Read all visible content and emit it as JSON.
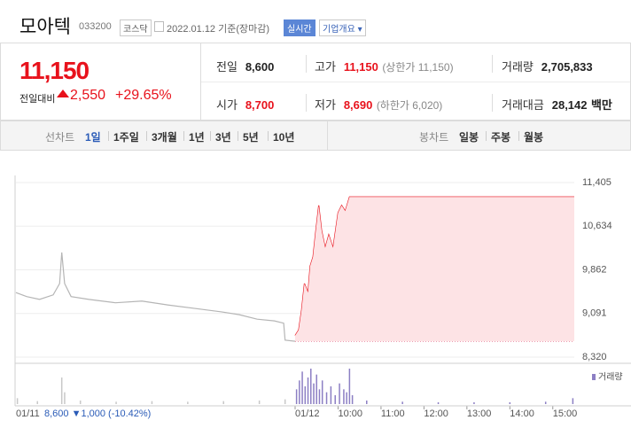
{
  "header": {
    "name": "모아텍",
    "code": "033200",
    "market": "코스닥",
    "date": "2022.01.12 기준(장마감)",
    "realtime": "실시간",
    "overview": "기업개요"
  },
  "quote": {
    "price": "11,150",
    "change_label": "전일대비",
    "change": "2,550",
    "rate": "+29.65%"
  },
  "stats": [
    {
      "label": "전일",
      "value": "8,600"
    },
    {
      "label": "고가",
      "value": "11,150",
      "note": "(상한가 11,150)"
    },
    {
      "label": "거래량",
      "value": "2,705,833"
    },
    {
      "label": "시가",
      "value": "8,700"
    },
    {
      "label": "저가",
      "value": "8,690",
      "note": "(하한가 6,020)"
    },
    {
      "label": "거래대금",
      "value": "28,142",
      "unit": "백만"
    }
  ],
  "tabs": {
    "line_label": "선차트",
    "line_periods": [
      "1일",
      "1주일",
      "3개월",
      "1년",
      "3년",
      "5년",
      "10년"
    ],
    "selected": 0,
    "candle_label": "봉차트",
    "candle_periods": [
      "일봉",
      "주봉",
      "월봉"
    ]
  },
  "chart_data": {
    "type": "line",
    "xlim": [
      -390,
      390
    ],
    "ylim": [
      8320,
      11405
    ],
    "yticks": [
      {
        "value": 11405,
        "label": "11,405"
      },
      {
        "value": 10634,
        "label": "10,634"
      },
      {
        "value": 9862,
        "label": "9,862"
      },
      {
        "value": 9091,
        "label": "9,091"
      },
      {
        "value": 8320,
        "label": "8,320"
      }
    ],
    "xticks": [
      {
        "value": 0,
        "label": "01/12"
      },
      {
        "value": 60,
        "label": "10:00"
      },
      {
        "value": 120,
        "label": "11:00"
      },
      {
        "value": 180,
        "label": "12:00"
      },
      {
        "value": 240,
        "label": "13:00"
      },
      {
        "value": 300,
        "label": "14:00"
      },
      {
        "value": 360,
        "label": "15:00"
      }
    ],
    "grid": true,
    "base": 8600,
    "fill": "#fde3e5",
    "series": [
      {
        "color": "#b5b5b5",
        "x": [
          -390,
          -375,
          -357,
          -338,
          -329,
          -326,
          -322,
          -313,
          -288,
          -251,
          -214,
          -177,
          -140,
          -103,
          -78,
          -53,
          -29,
          -16,
          -14,
          0
        ],
        "values": [
          9460,
          9390,
          9340,
          9420,
          9620,
          10170,
          9620,
          9390,
          9340,
          9280,
          9310,
          9240,
          9180,
          9120,
          9070,
          8990,
          8960,
          8920,
          8620,
          8600
        ]
      },
      {
        "color": "#e8121c",
        "x": [
          0,
          5,
          9,
          13,
          18,
          21,
          25,
          29,
          33,
          37,
          42,
          47,
          53,
          60,
          65,
          70,
          76,
          390
        ],
        "values": [
          8700,
          8800,
          9150,
          9620,
          9460,
          9930,
          10090,
          10560,
          11000,
          10560,
          10250,
          10480,
          10250,
          10870,
          11000,
          10900,
          11150,
          11150
        ]
      }
    ],
    "volume": {
      "name": "거래량",
      "color": "#8c7fc4",
      "ylim": [
        0,
        60
      ],
      "x": [
        -388,
        -360,
        -326,
        -322,
        -300,
        -250,
        -200,
        -150,
        -100,
        -50,
        -14,
        2,
        6,
        10,
        14,
        18,
        22,
        26,
        30,
        34,
        38,
        44,
        50,
        56,
        62,
        68,
        72,
        76,
        80,
        100,
        150,
        200,
        250,
        300,
        350,
        388
      ],
      "values": [
        10,
        5,
        45,
        20,
        6,
        4,
        5,
        4,
        5,
        6,
        8,
        25,
        40,
        55,
        30,
        45,
        60,
        35,
        50,
        25,
        40,
        20,
        30,
        15,
        35,
        25,
        20,
        60,
        15,
        6,
        4,
        3,
        3,
        3,
        4,
        10
      ]
    }
  },
  "footer": {
    "date": "01/11",
    "summary": "8,600 ▼1,000 (-10.42%)"
  }
}
